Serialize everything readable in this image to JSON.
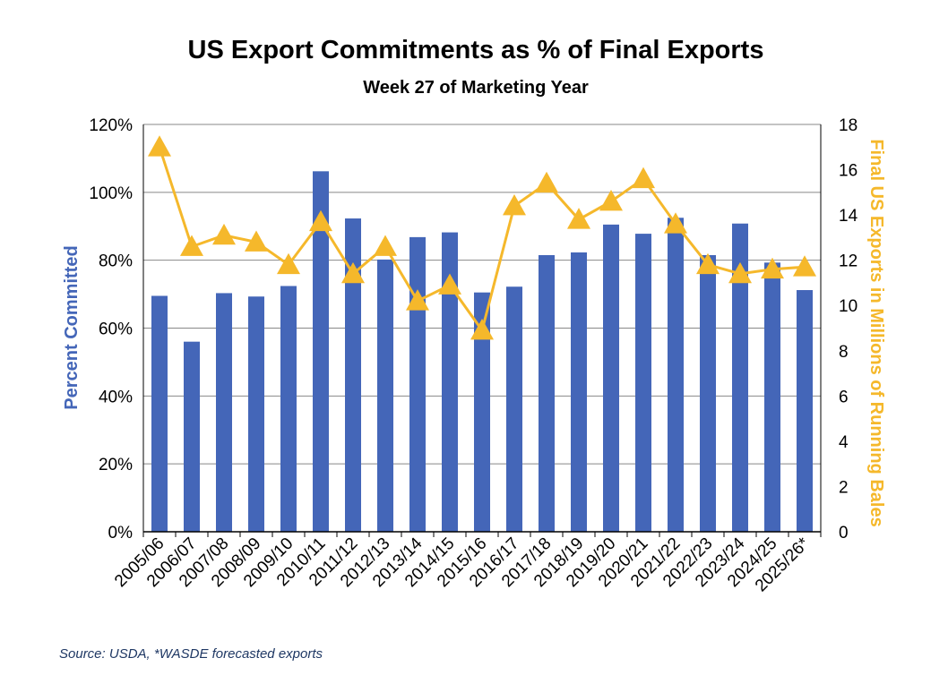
{
  "chart_data": {
    "type": "bar",
    "title": "US Export Commitments as % of Final Exports",
    "subtitle": "Week 27 of Marketing Year",
    "categories": [
      "2005/06",
      "2006/07",
      "2007/08",
      "2008/09",
      "2009/10",
      "2010/11",
      "2011/12",
      "2012/13",
      "2013/14",
      "2014/15",
      "2015/16",
      "2016/17",
      "2017/18",
      "2018/19",
      "2019/20",
      "2020/21",
      "2021/22",
      "2022/23",
      "2023/24",
      "2024/25",
      "2025/26*"
    ],
    "series": [
      {
        "type": "bar",
        "axis": "left",
        "color": "#4466b8",
        "values": [
          69.5,
          56,
          70.3,
          69.3,
          72.4,
          106.2,
          92.3,
          80.2,
          86.8,
          88.2,
          70.5,
          72.2,
          81.5,
          82.3,
          90.5,
          87.8,
          92.5,
          81.5,
          90.8,
          79.3,
          71.2
        ]
      },
      {
        "type": "line",
        "axis": "right",
        "color": "#f5b82b",
        "marker": "triangle",
        "values": [
          17.0,
          12.6,
          13.1,
          12.8,
          11.8,
          13.7,
          11.4,
          12.6,
          10.2,
          10.9,
          8.9,
          14.4,
          15.4,
          13.8,
          14.6,
          15.6,
          13.6,
          11.8,
          11.4,
          11.6,
          11.7
        ]
      }
    ],
    "ylabel": "Percent Committed",
    "ylabel_color": "#4466b8",
    "y2label": "Final US Exports in Millions of Running Bales",
    "y2label_color": "#f5b82b",
    "ylim": [
      0,
      120
    ],
    "y_ticks": [
      "0%",
      "20%",
      "40%",
      "60%",
      "80%",
      "100%",
      "120%"
    ],
    "y2lim": [
      0,
      18
    ],
    "y2_ticks": [
      "0",
      "2",
      "4",
      "6",
      "8",
      "10",
      "12",
      "14",
      "16",
      "18"
    ],
    "grid": true,
    "legend": "none"
  },
  "footer": {
    "source": "Source: USDA, *WASDE forecasted exports"
  }
}
